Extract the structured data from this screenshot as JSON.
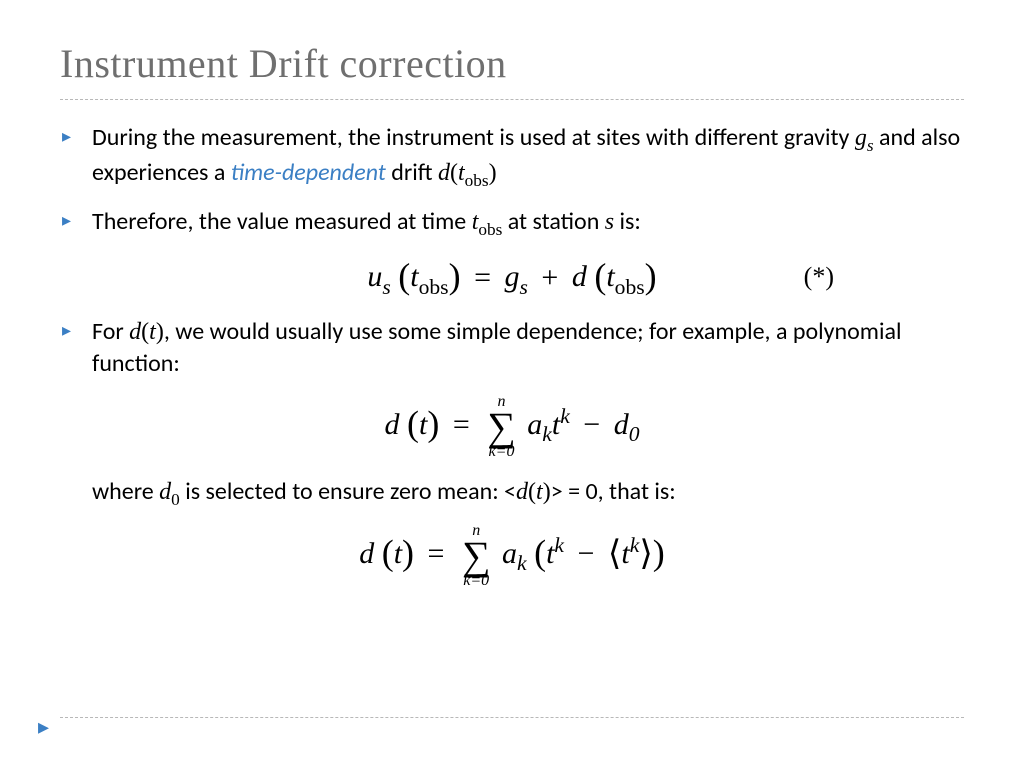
{
  "colors": {
    "title": "#6f6f6f",
    "accent": "#3b7fc4",
    "divider": "#b8b8b8",
    "text": "#000000",
    "background": "#ffffff"
  },
  "typography": {
    "title_family": "Georgia, Times New Roman, serif",
    "title_size_pt": 30,
    "body_family": "Gill Sans, Gill Sans MT, Calibri, sans-serif",
    "body_size_pt": 18,
    "math_family": "Times New Roman, Georgia, serif",
    "eq_size_pt": 22
  },
  "title": "Instrument Drift correction",
  "bullet1": {
    "pre": "During the measurement, the instrument is used at sites with different gravity ",
    "var1": "g",
    "sub1": "s",
    "mid": " and also experiences a ",
    "highlight": "time-dependent",
    "post": " drift ",
    "var2": "d",
    "paren_open": "(",
    "var3": "t",
    "sub3": "obs",
    "paren_close": ")"
  },
  "bullet2": {
    "pre": "Therefore, the value measured at time ",
    "var1": "t",
    "sub1": "obs",
    "mid": " at station ",
    "var2": "s",
    "post": " is:"
  },
  "eq1": {
    "lhs_u": "u",
    "lhs_sub": "s",
    "t": "t",
    "t_sub": "obs",
    "eq": "=",
    "g": "g",
    "g_sub": "s",
    "plus": "+",
    "d": "d",
    "marker": "(*)"
  },
  "bullet3": {
    "pre": "For ",
    "var1": "d",
    "paren_open": "(",
    "var2": "t",
    "paren_close": ")",
    "post": ", we would usually use some simple dependence; for example, a polynomial function:"
  },
  "eq2": {
    "d": "d",
    "t": "t",
    "eq": "=",
    "sum_top": "n",
    "sum_bottom": "k=0",
    "a": "a",
    "a_sub": "k",
    "t2": "t",
    "t2_sup": "k",
    "minus": "−",
    "d0": "d",
    "d0_sub": "0"
  },
  "note": {
    "pre": "where ",
    "var1": "d",
    "sub1": "0",
    "mid": " is selected to ensure zero mean:  <",
    "var2": "d",
    "paren_open": "(",
    "var3": "t",
    "paren_close": ")",
    "post": "> = 0, that is:"
  },
  "eq3": {
    "d": "d",
    "t": "t",
    "eq": "=",
    "sum_top": "n",
    "sum_bottom": "k=0",
    "a": "a",
    "a_sub": "k",
    "t2": "t",
    "t2_sup": "k",
    "minus": "−",
    "t3": "t",
    "t3_sup": "k"
  }
}
